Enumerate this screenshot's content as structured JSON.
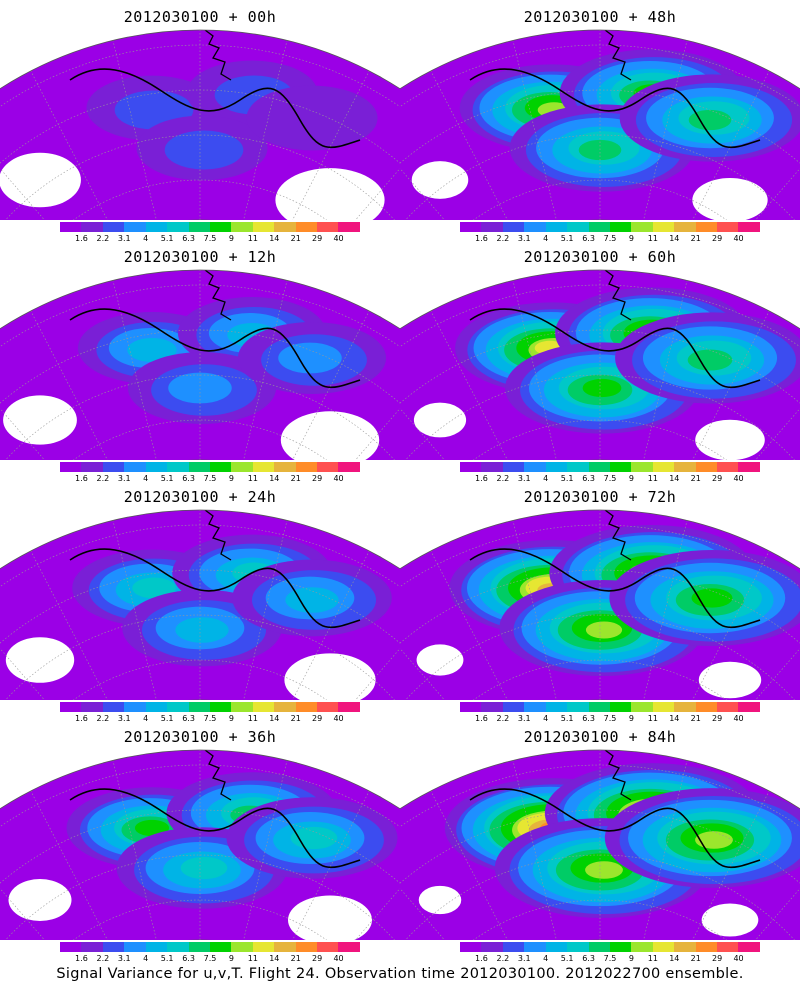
{
  "panels": [
    {
      "title": "2012030100 + 00h",
      "lead_hours": 0,
      "intensity": 0.15
    },
    {
      "title": "2012030100 + 48h",
      "lead_hours": 48,
      "intensity": 0.62
    },
    {
      "title": "2012030100 + 12h",
      "lead_hours": 12,
      "intensity": 0.3
    },
    {
      "title": "2012030100 + 60h",
      "lead_hours": 60,
      "intensity": 0.7
    },
    {
      "title": "2012030100 + 24h",
      "lead_hours": 24,
      "intensity": 0.4
    },
    {
      "title": "2012030100 + 72h",
      "lead_hours": 72,
      "intensity": 0.8
    },
    {
      "title": "2012030100 + 36h",
      "lead_hours": 36,
      "intensity": 0.5
    },
    {
      "title": "2012030100 + 84h",
      "lead_hours": 84,
      "intensity": 0.88
    }
  ],
  "colorbar": {
    "labels": [
      "1.6",
      "2.2",
      "3.1",
      "4",
      "5.1",
      "6.3",
      "7.5",
      "9",
      "11",
      "14",
      "21",
      "29",
      "40"
    ],
    "colors": [
      "#9b00e6",
      "#7a1fd6",
      "#3c4cf0",
      "#1e90ff",
      "#00b4e6",
      "#00c8c8",
      "#00cc66",
      "#00d200",
      "#9be62d",
      "#e6e632",
      "#e6b43c",
      "#ff8c28",
      "#ff5050",
      "#f0147d"
    ]
  },
  "footer": "Signal Variance for u,v,T. Flight 24. Observation time 2012030100. 2012022700 ensemble."
}
